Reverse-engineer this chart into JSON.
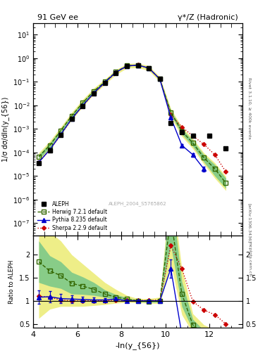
{
  "title_left": "91 GeV ee",
  "title_right": "γ*/Z (Hadronic)",
  "ylabel_main": "1/σ dσ/dln(y_{56})",
  "ylabel_ratio": "Ratio to ALEPH",
  "xlabel": "-ln(y_{56})",
  "xlim": [
    4.0,
    13.5
  ],
  "ylim_main": [
    3e-08,
    30
  ],
  "ylim_ratio": [
    0.42,
    2.42
  ],
  "watermark": "ALEPH_2004_S5765862",
  "right_label_top": "Rivet 3.1.10, ≥ 400k events",
  "arxiv_label": "[arXiv:1306.3436]",
  "url_label": "mcplots.cern.ch",
  "aleph_x": [
    4.25,
    4.75,
    5.25,
    5.75,
    6.25,
    6.75,
    7.25,
    7.75,
    8.25,
    8.75,
    9.25,
    9.75,
    10.25,
    10.75,
    11.25,
    12.0,
    12.75
  ],
  "aleph_y": [
    3.5e-05,
    0.00012,
    0.00055,
    0.0026,
    0.0095,
    0.032,
    0.09,
    0.24,
    0.46,
    0.51,
    0.38,
    0.13,
    0.0018,
    0.0007,
    0.0005,
    0.0005,
    0.00015
  ],
  "aleph_yerr": [
    5e-06,
    1.5e-05,
    6e-05,
    0.0002,
    0.0004,
    0.0008,
    0.002,
    0.004,
    0.006,
    0.006,
    0.006,
    0.005,
    0.0002,
    0.0001,
    8e-05,
    8e-05,
    3e-05
  ],
  "herwig_x": [
    4.25,
    4.75,
    5.25,
    5.75,
    6.25,
    6.75,
    7.25,
    7.75,
    8.25,
    8.75,
    9.25,
    9.75,
    10.25,
    10.75,
    11.25,
    11.75,
    12.25,
    12.75
  ],
  "herwig_y": [
    6.5e-05,
    0.0002,
    0.00085,
    0.0036,
    0.013,
    0.04,
    0.1,
    0.26,
    0.48,
    0.51,
    0.38,
    0.13,
    0.005,
    0.0008,
    0.00025,
    6e-05,
    2e-05,
    5e-06
  ],
  "herwig_band_lo": [
    5e-05,
    0.00016,
    0.0007,
    0.003,
    0.011,
    0.036,
    0.095,
    0.25,
    0.47,
    0.5,
    0.37,
    0.125,
    0.004,
    0.0006,
    0.00018,
    4e-05,
    1e-05,
    3e-06
  ],
  "herwig_band_hi": [
    8e-05,
    0.00025,
    0.001,
    0.0042,
    0.015,
    0.045,
    0.107,
    0.27,
    0.49,
    0.52,
    0.39,
    0.135,
    0.006,
    0.001,
    0.00032,
    8e-05,
    3e-05,
    8e-06
  ],
  "pythia_x": [
    4.25,
    4.75,
    5.25,
    5.75,
    6.25,
    6.75,
    7.25,
    7.75,
    8.25,
    8.75,
    9.25,
    9.75,
    10.25,
    10.75,
    11.25,
    11.75
  ],
  "pythia_y": [
    3.8e-05,
    0.00013,
    0.00058,
    0.0027,
    0.0098,
    0.033,
    0.092,
    0.25,
    0.46,
    0.51,
    0.38,
    0.13,
    0.003,
    0.0002,
    8e-05,
    2e-05
  ],
  "pythia_yerr": [
    4e-06,
    1.2e-05,
    5e-05,
    0.00018,
    0.00035,
    0.0007,
    0.0018,
    0.004,
    0.006,
    0.006,
    0.006,
    0.005,
    0.0002,
    3e-05,
    1.5e-05,
    5e-06
  ],
  "sherpa_x": [
    4.25,
    4.75,
    5.25,
    5.75,
    6.25,
    6.75,
    7.25,
    7.75,
    8.25,
    8.75,
    9.25,
    9.75,
    10.25,
    10.75,
    11.25,
    11.75,
    12.25,
    12.75
  ],
  "sherpa_y": [
    3.8e-05,
    0.00013,
    0.00056,
    0.0026,
    0.0095,
    0.032,
    0.09,
    0.245,
    0.465,
    0.515,
    0.385,
    0.132,
    0.004,
    0.0012,
    0.0005,
    0.00022,
    8e-05,
    1.5e-05
  ],
  "herwig_ratio_x": [
    4.25,
    4.75,
    5.25,
    5.75,
    6.25,
    6.75,
    7.25,
    7.75,
    8.25,
    8.75,
    9.25,
    9.75,
    10.25,
    10.75,
    11.25,
    11.75,
    12.25,
    12.75
  ],
  "herwig_ratio_y": [
    1.85,
    1.65,
    1.55,
    1.38,
    1.32,
    1.25,
    1.15,
    1.08,
    1.04,
    1.0,
    0.99,
    1.0,
    2.8,
    1.15,
    0.48,
    0.27,
    0.2,
    0.15
  ],
  "herwig_ratio_lo": [
    1.4,
    1.32,
    1.27,
    1.15,
    1.14,
    1.12,
    1.08,
    1.04,
    1.02,
    0.98,
    0.97,
    0.97,
    2.2,
    0.88,
    0.36,
    0.18,
    0.12,
    0.08
  ],
  "herwig_ratio_hi": [
    2.3,
    1.98,
    1.85,
    1.62,
    1.52,
    1.4,
    1.24,
    1.14,
    1.07,
    1.02,
    1.01,
    1.03,
    3.4,
    1.42,
    0.6,
    0.36,
    0.28,
    0.22
  ],
  "sherpa_ratio_x": [
    4.25,
    4.75,
    5.25,
    5.75,
    6.25,
    6.75,
    7.25,
    7.75,
    8.25,
    8.75,
    9.25,
    9.75,
    10.25,
    10.75,
    11.25,
    11.75,
    12.25,
    12.75
  ],
  "sherpa_ratio_y": [
    1.1,
    1.08,
    1.02,
    1.0,
    1.0,
    1.0,
    1.0,
    1.02,
    1.01,
    1.01,
    1.01,
    1.02,
    2.2,
    1.7,
    0.99,
    0.8,
    0.7,
    0.5
  ],
  "pythia_ratio_x": [
    4.25,
    4.75,
    5.25,
    5.75,
    6.25,
    6.75,
    7.25,
    7.75,
    8.25,
    8.75,
    9.25,
    9.75,
    10.25,
    10.75,
    11.25,
    11.75
  ],
  "pythia_ratio_y": [
    1.08,
    1.09,
    1.05,
    1.04,
    1.03,
    1.02,
    1.02,
    1.04,
    1.0,
    1.0,
    1.0,
    1.0,
    1.7,
    0.27,
    0.16,
    0.12
  ],
  "pythia_ratio_err": [
    0.14,
    0.12,
    0.1,
    0.08,
    0.06,
    0.05,
    0.04,
    0.03,
    0.02,
    0.02,
    0.02,
    0.03,
    0.2,
    0.04,
    0.03,
    0.02
  ],
  "yellow_band_lo": [
    0.62,
    0.82,
    0.88,
    0.88,
    0.88,
    0.9,
    0.92,
    0.95,
    0.97,
    0.96,
    0.95,
    0.94,
    1.8,
    0.7,
    0.3,
    0.15,
    0.08,
    0.05
  ],
  "yellow_band_hi": [
    2.55,
    2.5,
    2.3,
    2.0,
    1.8,
    1.6,
    1.4,
    1.25,
    1.12,
    1.05,
    1.05,
    1.08,
    3.6,
    1.7,
    0.72,
    0.48,
    0.38,
    0.28
  ],
  "color_aleph": "#000000",
  "color_herwig": "#336600",
  "color_pythia": "#0000cc",
  "color_sherpa": "#cc0000",
  "color_herwig_band": "#88cc88",
  "color_yellow_band": "#eeee88"
}
